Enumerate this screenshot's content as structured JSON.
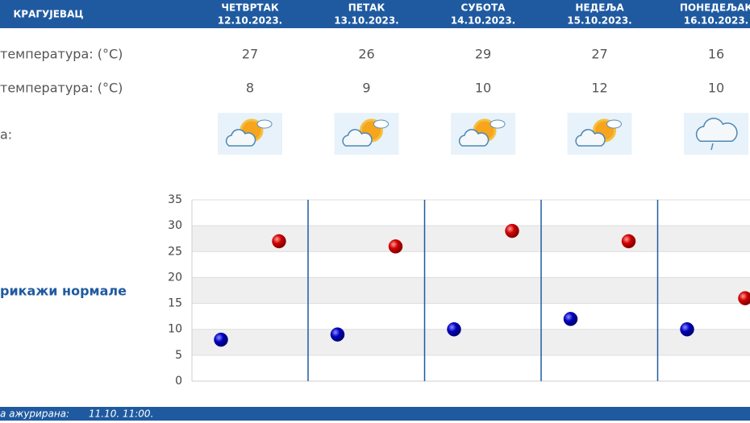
{
  "header": {
    "city": "КРАГУЈЕВАЦ"
  },
  "days": [
    {
      "name": "ЧЕТВРТАК",
      "date": "12.10.2023."
    },
    {
      "name": "ПЕТАК",
      "date": "13.10.2023."
    },
    {
      "name": "СУБОТА",
      "date": "14.10.2023."
    },
    {
      "name": "НЕДЕЉА",
      "date": "15.10.2023."
    },
    {
      "name": "ПОНЕДЕЉАК",
      "date": "16.10.2023."
    }
  ],
  "rows": {
    "max_label": "температура: (°C)",
    "min_label": "температура: (°C)",
    "weather_label": "а:"
  },
  "normals_link": "рикажи нормале",
  "footer": {
    "label": "а ажурирана:",
    "time": "11.10. 11:00."
  },
  "chart": {
    "type": "scatter",
    "ylim": [
      0,
      35
    ],
    "yticks": [
      0,
      5,
      10,
      15,
      20,
      25,
      30,
      35
    ],
    "series": [
      {
        "color": "#cc0000",
        "values": [
          27,
          26,
          29,
          27,
          16
        ]
      },
      {
        "color": "#0000b0",
        "values": [
          8,
          9,
          10,
          12,
          10
        ]
      }
    ]
  }
}
